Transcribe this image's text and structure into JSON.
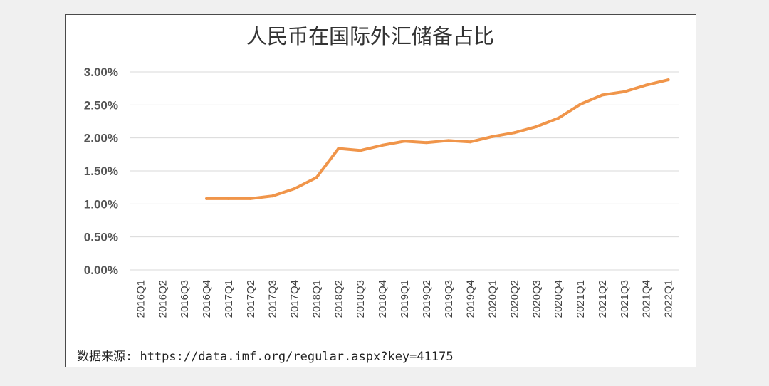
{
  "chart_data": {
    "type": "line",
    "title": "人民币在国际外汇储备占比",
    "source": "数据来源: https://data.imf.org/regular.aspx?key=41175",
    "xlabel": "",
    "ylabel": "",
    "ylim": [
      0,
      0.03
    ],
    "yticks": [
      "0.00%",
      "0.50%",
      "1.00%",
      "1.50%",
      "2.00%",
      "2.50%",
      "3.00%"
    ],
    "grid": true,
    "legend": "none",
    "line_color": "#f0954a",
    "categories": [
      "2016Q1",
      "2016Q2",
      "2016Q3",
      "2016Q4",
      "2017Q1",
      "2017Q2",
      "2017Q3",
      "2017Q4",
      "2018Q1",
      "2018Q2",
      "2018Q3",
      "2018Q4",
      "2019Q1",
      "2019Q2",
      "2019Q3",
      "2019Q4",
      "2020Q1",
      "2020Q2",
      "2020Q3",
      "2020Q4",
      "2021Q1",
      "2021Q2",
      "2021Q3",
      "2021Q4",
      "2022Q1"
    ],
    "series": [
      {
        "values": [
          null,
          null,
          null,
          0.0108,
          0.0108,
          0.0108,
          0.0112,
          0.0123,
          0.014,
          0.0184,
          0.0181,
          0.0189,
          0.0195,
          0.0193,
          0.0196,
          0.0194,
          0.0202,
          0.0208,
          0.0217,
          0.023,
          0.0251,
          0.0265,
          0.027,
          0.028,
          0.0288
        ]
      }
    ]
  }
}
